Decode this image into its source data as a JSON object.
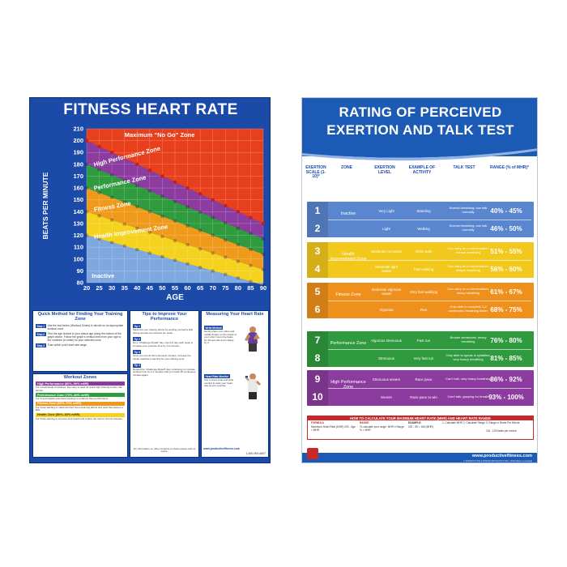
{
  "left": {
    "title": "FITNESS HEART RATE",
    "chart_data": {
      "type": "area",
      "y_label": "BEATS PER MINUTE",
      "x_label": "AGE",
      "y_ticks": [
        210,
        200,
        190,
        180,
        170,
        160,
        150,
        140,
        130,
        120,
        110,
        100,
        90,
        80
      ],
      "x_ticks": [
        20,
        25,
        30,
        35,
        40,
        45,
        50,
        55,
        60,
        65,
        70,
        75,
        80,
        85,
        90
      ],
      "ylim": [
        80,
        210
      ],
      "xlim": [
        20,
        90
      ],
      "zones": [
        {
          "name": "Maximum “No Go” Zone",
          "color": "#e8401c",
          "lower_at_20": 200,
          "lower_at_90": 130
        },
        {
          "name": "High Performance Zone",
          "color": "#8b3c9e",
          "lower_at_20": 180,
          "lower_at_90": 117
        },
        {
          "name": "Performance Zone",
          "color": "#2f9a3e",
          "lower_at_20": 160,
          "lower_at_90": 104
        },
        {
          "name": "Fitness Zone",
          "color": "#f09a1c",
          "lower_at_20": 140,
          "lower_at_90": 91
        },
        {
          "name": "Health Improvement Zone",
          "color": "#f4d21e",
          "lower_at_20": 120,
          "lower_at_90": 78
        },
        {
          "name": "Inactive",
          "color": "#7fa8df",
          "lower_at_20": 80,
          "lower_at_90": 80
        }
      ]
    },
    "panels": {
      "quick_title": "Quick Method for Finding Your Training Zone",
      "steps": [
        {
          "badge": "Step 1",
          "text": "Use the box below (Workout Zones) to decide on an appropriate workout zone."
        },
        {
          "badge": "Step 2",
          "text": "Find the age closest to your actual age along the bottom of the graph above. Follow the graph's vertical lines from your age to the numbers (in white) for your selected zone."
        },
        {
          "badge": "Step 3",
          "text": "Train within your heart rate range."
        }
      ],
      "workout_title": "Workout Zones",
      "workout_zones": [
        {
          "label": "High Performance (80%–90% mHR)",
          "color": "#8b3c9e",
          "desc": "For exceptionally fit athletes, this zone is used for quick high intensity bursts, like sprints."
        },
        {
          "label": "Performance Zone (70%–80% mHR)",
          "color": "#2f9a3e",
          "desc": "For fit and regular exercisers wanting to enhance their performance."
        },
        {
          "label": "Fitness Zone (60%–70% mHR)",
          "color": "#f09a1c",
          "desc": "For those wanting to maximize their fat-consuming efforts and push themselves a little."
        },
        {
          "label": "Health Zone (50%–60% mHR)",
          "color": "#f4d21e",
          "desc": "For those wanting to improve their health and reduce the risk for chronic disease."
        }
      ],
      "tips_title": "Tips to Improve Your Performance",
      "tips": [
        {
          "badge": "Tip 1",
          "text": "Maximize your training efforts by working yourself a little during at least one workout per week."
        },
        {
          "badge": "Tip 2",
          "text": "Do a “Challenge Myself” day. Use this day each week to increase your exercise time by 1-2 minutes."
        },
        {
          "badge": "Tip 3",
          "text": "Once you can do 30 continuous minutes, increase the cardio machine's intensity for your training zone."
        },
        {
          "badge": "Tip 4",
          "text": "Repeat the “Challenge Myself” day, continuing to increase workout time by 1-2 minutes until you reach 30 continuous minutes again."
        }
      ],
      "measure_title": "Measuring Your Heart Rate",
      "methods": [
        {
          "badge": "Wrist Method",
          "text": "Gently place your index and middle fingers on the inside of your wrist. Count the beats for 15 seconds and multiply by 4."
        },
        {
          "badge": "Heart Rate Monitor",
          "text": "Use a chest strap and wrist monitor to track your heart rate as you exercise."
        }
      ],
      "footer_url": "www.productivefitness.com",
      "footer_phone": "1-800-994-6697",
      "footer_info": "For information on other products or charts please visit us online."
    }
  },
  "right": {
    "title_line1": "RATING OF PERCEIVED",
    "title_line2": "EXERTION AND TALK TEST",
    "columns": {
      "scale": "EXERTION SCALE (1-10)*",
      "zone": "ZONE",
      "level": "EXERTION LEVEL",
      "activity": "EXAMPLE OF ACTIVITY",
      "talk": "TALK TEST",
      "range": "RANGE (% of MHR)*"
    },
    "zones": [
      {
        "name": "Inactive",
        "color": "#5a86cf",
        "rows": [
          {
            "num": "1",
            "level": "Very Light",
            "activity": "Standing",
            "talk": "Normal breathing: can talk normally",
            "range": "40% - 45%"
          },
          {
            "num": "2",
            "level": "Light",
            "activity": "Walking",
            "talk": "Normal breathing: can talk normally",
            "range": "46% - 50%"
          }
        ]
      },
      {
        "name": "Health Improvement Zone",
        "color": "#f2c81c",
        "rows": [
          {
            "num": "3",
            "level": "Moderate no sweat",
            "activity": "Brisk walk",
            "talk": "Can carry on a conversation: normal breathing",
            "range": "51% - 55%"
          },
          {
            "num": "4",
            "level": "Moderate light sweat",
            "activity": "Fast walking",
            "talk": "Can carry on a conversation: deeper breathing",
            "range": "56% - 60%"
          }
        ]
      },
      {
        "name": "Fitness Zone",
        "color": "#f0901c",
        "rows": [
          {
            "num": "5",
            "level": "Moderate vigorous sweat",
            "activity": "Very fast walk/jog",
            "talk": "Can carry on a conversation; heavy breathing",
            "range": "61% - 67%"
          },
          {
            "num": "6",
            "level": "Vigorous",
            "activity": "Run",
            "talk": "Only able to complete 1-2 sentences; breathing faster",
            "range": "68% - 75%"
          }
        ]
      },
      {
        "name": "Performance Zone",
        "color": "#2f9a3e",
        "rows": [
          {
            "num": "7",
            "level": "Vigorous strenuous",
            "activity": "Fast run",
            "talk": "Broken sentences; heavy breathing",
            "range": "76% - 80%"
          },
          {
            "num": "8",
            "level": "Strenuous",
            "activity": "Very fast run",
            "talk": "Only able to speak in syllables; very heavy breathing",
            "range": "81% - 85%"
          }
        ]
      },
      {
        "name": "High Performance Zone",
        "color": "#8b3c9e",
        "rows": [
          {
            "num": "9",
            "level": "Strenuous severe",
            "activity": "Race pace",
            "talk": "Can't talk; very heavy breathing",
            "range": "86% - 92%"
          },
          {
            "num": "10",
            "level": "Severe",
            "activity": "Race pace to win",
            "talk": "Can't talk; gasping for breath",
            "range": "93% - 100%"
          }
        ]
      }
    ],
    "calc": {
      "title": "HOW TO CALCULATE YOUR MAXIMUM HEART RATE (MHR) AND HEART RATE RANGE",
      "formula_label": "FORMULA",
      "formula_text": "Maximum Heart Rate (MHR) 220 - Age = MHR",
      "range_label": "RANGE",
      "range_text": "To calculate your range: MHR x Range % = MHR",
      "example_label": "EXAMPLE:",
      "example_text": "220 - 55 = 165 (MHR)",
      "steps_text": "1. Calculate MHR   2. Calculate Range   3. Range in Beats Per Minute",
      "result_text": "116 - 125 beats per minute"
    },
    "footer_url": "www.productivefitness.com",
    "footer_copy": "© PRODUCTIVE FITNESS PRODUCTS INC. 2016  Made in Canada"
  }
}
